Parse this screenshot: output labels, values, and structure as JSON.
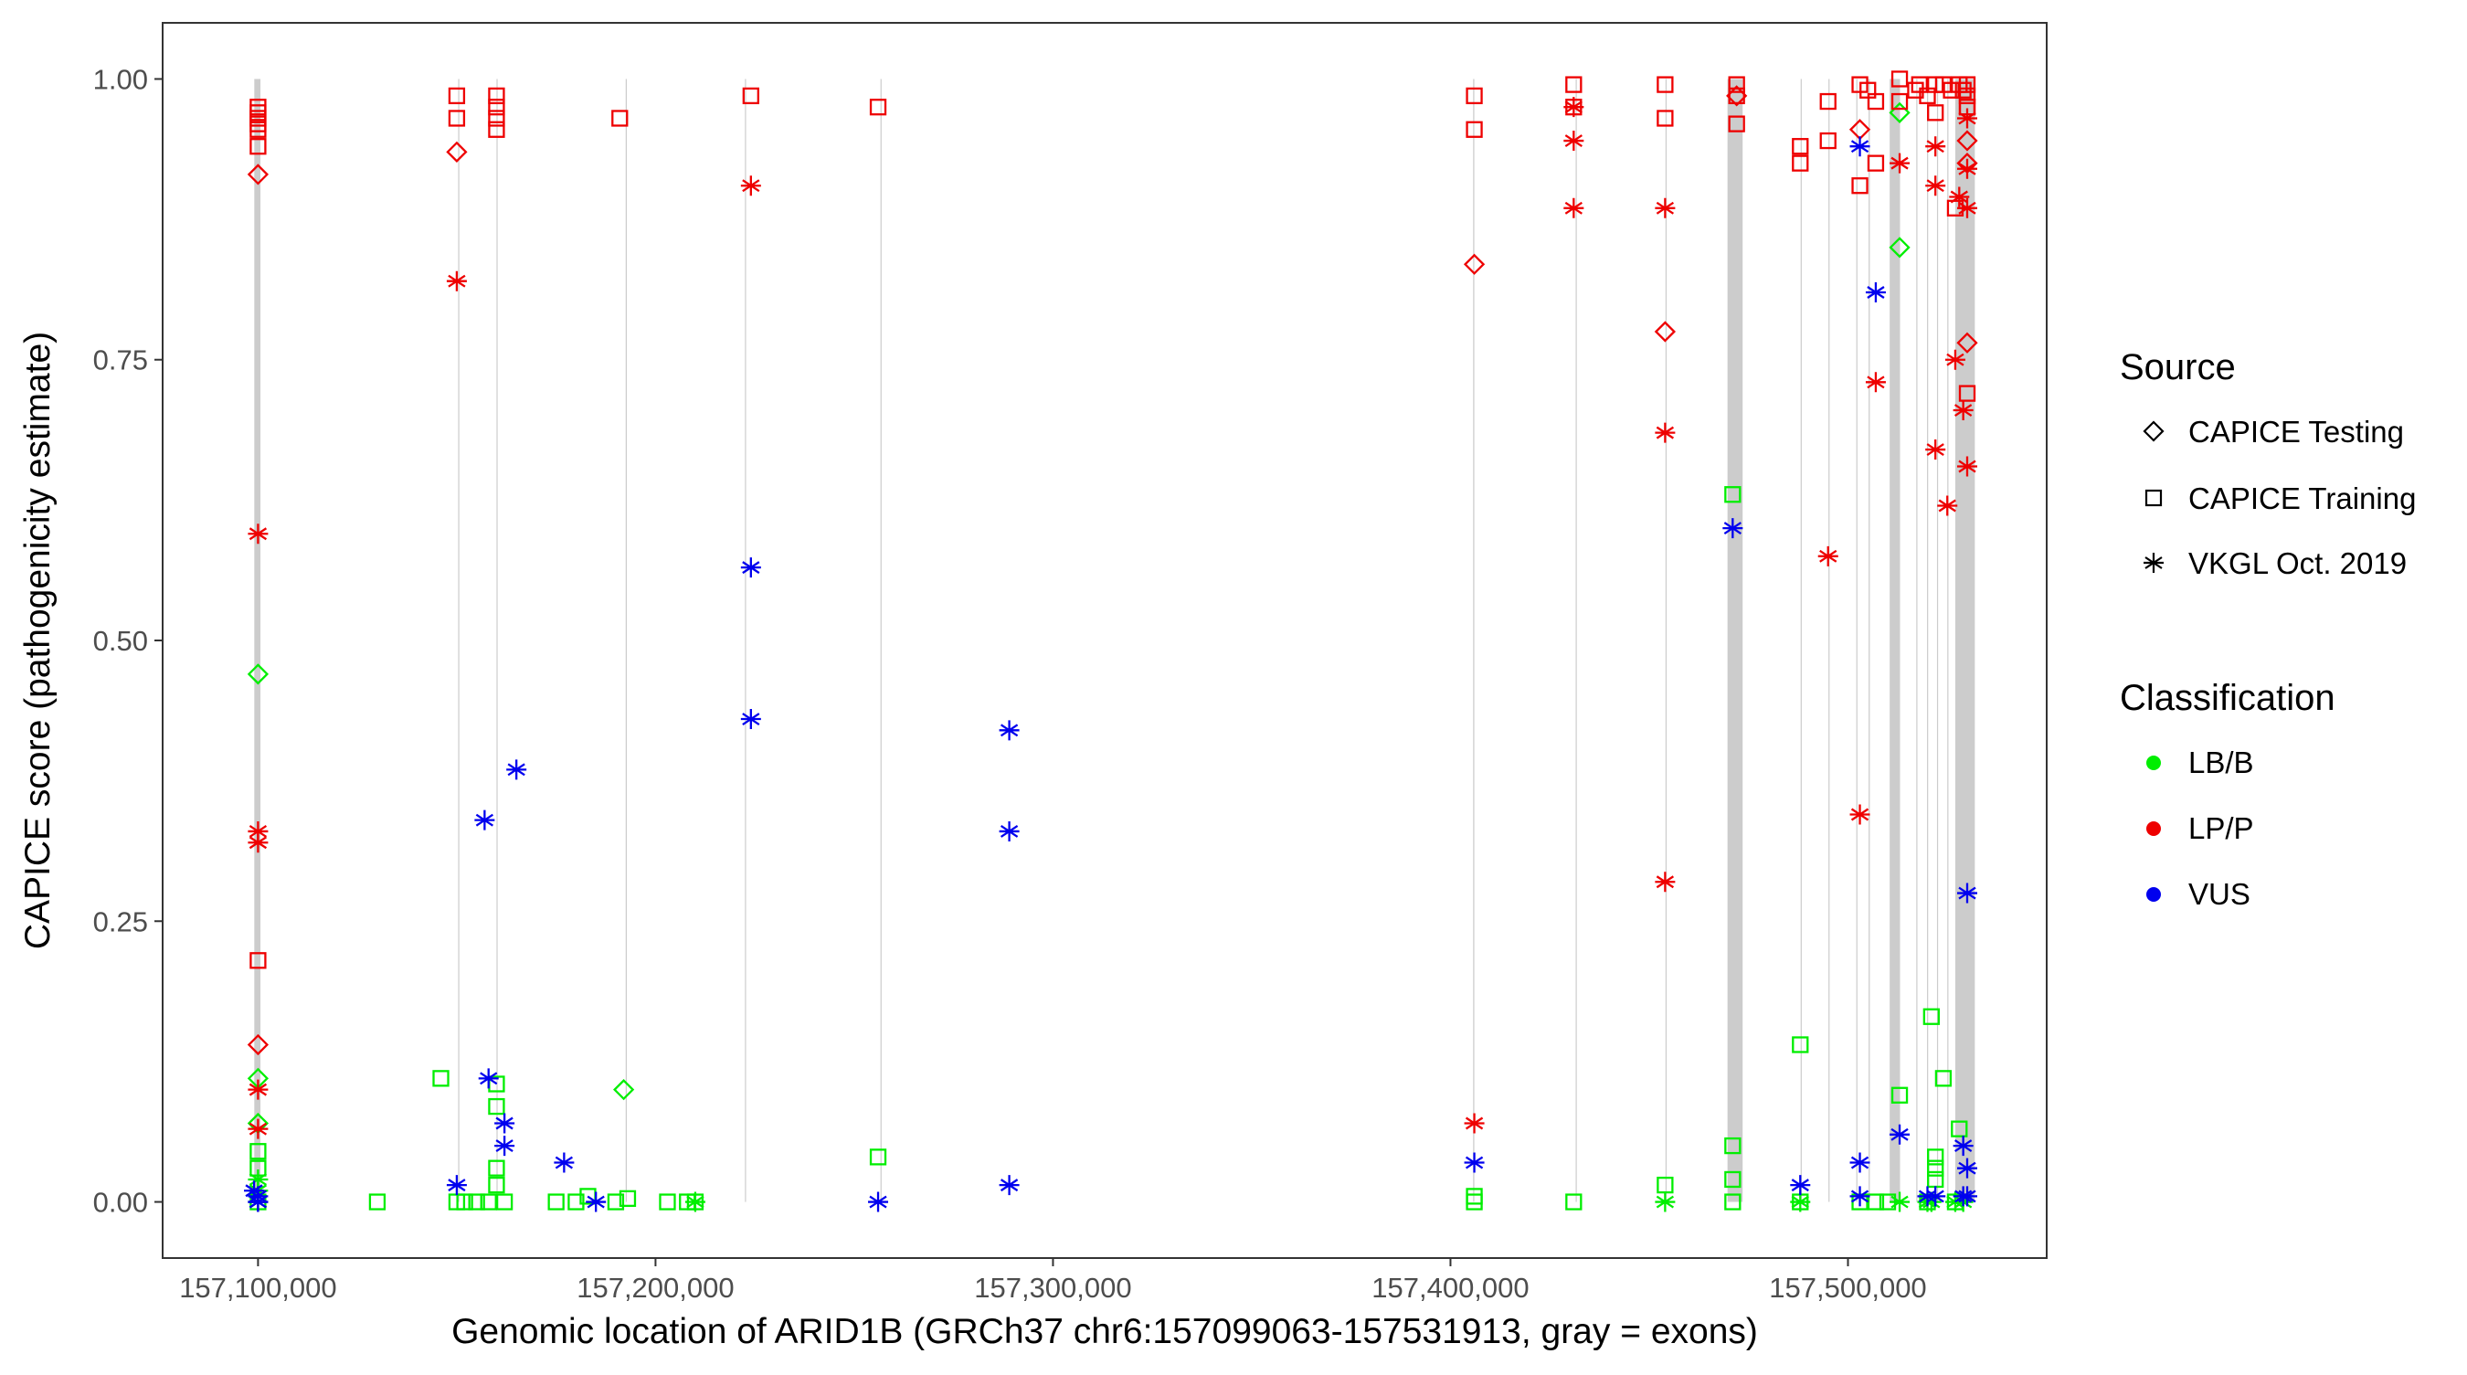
{
  "chart_data": {
    "type": "scatter",
    "xlabel": "Genomic location of ARID1B (GRCh37 chr6:157099063-157531913, gray = exons)",
    "ylabel": "CAPICE score (pathogenicity estimate)",
    "xlim": [
      157076000,
      157550000
    ],
    "ylim": [
      -0.05,
      1.05
    ],
    "x_ticks": [
      157100000,
      157200000,
      157300000,
      157400000,
      157500000
    ],
    "x_tick_labels": [
      "157,100,000",
      "157,200,000",
      "157,300,000",
      "157,400,000",
      "157,500,000"
    ],
    "y_ticks": [
      0,
      0.25,
      0.5,
      0.75,
      1
    ],
    "y_tick_labels": [
      "0.00",
      "0.25",
      "0.50",
      "0.75",
      "1.00"
    ],
    "grid": false,
    "exons": [
      [
        157099063,
        157100605
      ],
      [
        157150360,
        157150555
      ],
      [
        157160000,
        157160200
      ],
      [
        157192500,
        157192700
      ],
      [
        157222500,
        157222700
      ],
      [
        157256600,
        157256800
      ],
      [
        157405700,
        157406000
      ],
      [
        157431500,
        157431700
      ],
      [
        157454100,
        157454300
      ],
      [
        157469700,
        157473500
      ],
      [
        157488100,
        157488300
      ],
      [
        157495100,
        157495300
      ],
      [
        157502100,
        157502300
      ],
      [
        157505200,
        157505500
      ],
      [
        157510500,
        157513100
      ],
      [
        157517200,
        157517400
      ],
      [
        157519900,
        157520100
      ],
      [
        157522400,
        157522600
      ],
      [
        157525000,
        157525200
      ],
      [
        157527000,
        157531913
      ]
    ],
    "legend": {
      "placement": "right",
      "source_title": "Source",
      "source_entries": [
        {
          "label": "CAPICE Testing",
          "shape": "diamond"
        },
        {
          "label": "CAPICE Training",
          "shape": "square"
        },
        {
          "label": "VKGL Oct. 2019",
          "shape": "asterisk"
        }
      ],
      "class_title": "Classification",
      "class_entries": [
        {
          "label": "LB/B",
          "color": "#00ee00"
        },
        {
          "label": "LP/P",
          "color": "#ee0000"
        },
        {
          "label": "VUS",
          "color": "#0000ee"
        }
      ]
    },
    "series": [
      {
        "name": "CAPICE Testing",
        "class": "LB/B",
        "x": [
          157100000,
          157100000,
          157100000,
          157192000,
          157513000,
          157513000
        ],
        "y": [
          0.47,
          0.11,
          0.07,
          0.1,
          0.85,
          0.97
        ]
      },
      {
        "name": "CAPICE Testing",
        "class": "LP/P",
        "x": [
          157100000,
          157100000,
          157150000,
          157406000,
          157454000,
          157472000,
          157503000,
          157530000,
          157530000,
          157530000
        ],
        "y": [
          0.915,
          0.14,
          0.935,
          0.835,
          0.775,
          0.985,
          0.955,
          0.765,
          0.945,
          0.925
        ]
      },
      {
        "name": "CAPICE Training",
        "class": "LB/B",
        "x": [
          157100000,
          157100000,
          157100000,
          157130000,
          157146000,
          157150000,
          157152000,
          157155000,
          157158000,
          157160000,
          157160000,
          157160000,
          157160000,
          157162000,
          157175000,
          157180000,
          157183000,
          157190000,
          157193000,
          157203000,
          157208000,
          157210000,
          157256000,
          157406000,
          157406000,
          157431000,
          157454000,
          157471000,
          157471000,
          157471000,
          157471000,
          157488000,
          157488000,
          157503000,
          157507000,
          157510000,
          157513000,
          157520000,
          157521000,
          157522000,
          157522000,
          157522000,
          157524000,
          157527000,
          157528000
        ],
        "y": [
          0.0,
          0.03,
          0.045,
          0.0,
          0.11,
          0.0,
          0.0,
          0.0,
          0.0,
          0.105,
          0.085,
          0.03,
          0.015,
          0.0,
          0.0,
          0.0,
          0.005,
          0.0,
          0.003,
          0.0,
          0.0,
          0.0,
          0.04,
          0.0,
          0.005,
          0.0,
          0.015,
          0.63,
          0.05,
          0.02,
          0.0,
          0.14,
          0.0,
          0.0,
          0.0,
          0.0,
          0.095,
          0.0,
          0.165,
          0.04,
          0.03,
          0.02,
          0.11,
          0.0,
          0.065
        ]
      },
      {
        "name": "CAPICE Training",
        "class": "LP/P",
        "x": [
          157100000,
          157100000,
          157100000,
          157100000,
          157100000,
          157100000,
          157100000,
          157150000,
          157150000,
          157160000,
          157160000,
          157160000,
          157160000,
          157191000,
          157224000,
          157256000,
          157406000,
          157406000,
          157431000,
          157431000,
          157454000,
          157454000,
          157472000,
          157472000,
          157472000,
          157488000,
          157488000,
          157495000,
          157495000,
          157503000,
          157503000,
          157505000,
          157507000,
          157507000,
          157513000,
          157513000,
          157517000,
          157518000,
          157520000,
          157522000,
          157522000,
          157524000,
          157526000,
          157527000,
          157528000,
          157529000,
          157530000,
          157530000,
          157530000,
          157530000,
          157530000
        ],
        "y": [
          0.975,
          0.97,
          0.965,
          0.96,
          0.955,
          0.94,
          0.215,
          0.985,
          0.965,
          0.985,
          0.975,
          0.965,
          0.955,
          0.965,
          0.985,
          0.975,
          0.985,
          0.955,
          0.995,
          0.975,
          0.995,
          0.965,
          0.995,
          0.985,
          0.96,
          0.94,
          0.925,
          0.98,
          0.945,
          0.995,
          0.905,
          0.99,
          0.98,
          0.925,
          1.0,
          0.98,
          0.99,
          0.995,
          0.985,
          0.995,
          0.97,
          0.995,
          0.99,
          0.885,
          0.995,
          0.99,
          0.995,
          0.985,
          0.975,
          0.975,
          0.72
        ]
      },
      {
        "name": "VKGL Oct. 2019",
        "class": "LB/B",
        "x": [
          157100000,
          157100000,
          157100000,
          157210000,
          157454000,
          157488000,
          157513000,
          157520000,
          157521000,
          157527000,
          157529000
        ],
        "y": [
          0.02,
          0.01,
          0.0,
          0.0,
          0.0,
          0.0,
          0.0,
          0.0,
          0.0,
          0.0,
          0.0
        ]
      },
      {
        "name": "VKGL Oct. 2019",
        "class": "LP/P",
        "x": [
          157100000,
          157100000,
          157100000,
          157100000,
          157100000,
          157150000,
          157224000,
          157406000,
          157431000,
          157431000,
          157431000,
          157454000,
          157454000,
          157454000,
          157495000,
          157503000,
          157507000,
          157513000,
          157522000,
          157522000,
          157522000,
          157525000,
          157527000,
          157528000,
          157529000,
          157530000,
          157530000,
          157530000,
          157530000
        ],
        "y": [
          0.595,
          0.33,
          0.32,
          0.1,
          0.065,
          0.82,
          0.905,
          0.07,
          0.975,
          0.945,
          0.885,
          0.885,
          0.685,
          0.285,
          0.575,
          0.345,
          0.73,
          0.925,
          0.94,
          0.905,
          0.67,
          0.62,
          0.75,
          0.895,
          0.705,
          0.965,
          0.92,
          0.885,
          0.655
        ]
      },
      {
        "name": "VKGL Oct. 2019",
        "class": "VUS",
        "x": [
          157099000,
          157100000,
          157100000,
          157100000,
          157150000,
          157157000,
          157158000,
          157162000,
          157162000,
          157165000,
          157177000,
          157185000,
          157224000,
          157224000,
          157256000,
          157289000,
          157289000,
          157289000,
          157406000,
          157471000,
          157488000,
          157503000,
          157503000,
          157503000,
          157507000,
          157513000,
          157520000,
          157522000,
          157529000,
          157529000,
          157530000,
          157530000,
          157530000
        ],
        "y": [
          0.01,
          0.005,
          0.0,
          0.0,
          0.015,
          0.34,
          0.11,
          0.07,
          0.05,
          0.385,
          0.035,
          0.0,
          0.565,
          0.43,
          0.0,
          0.42,
          0.33,
          0.015,
          0.035,
          0.6,
          0.015,
          0.94,
          0.035,
          0.005,
          0.81,
          0.06,
          0.005,
          0.005,
          0.05,
          0.005,
          0.275,
          0.03,
          0.005
        ]
      }
    ]
  }
}
